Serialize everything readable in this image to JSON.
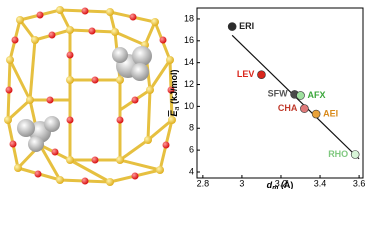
{
  "chart_data": {
    "type": "scatter",
    "x_label": {
      "symbol": "d",
      "subscript": "m",
      "unit": "(Å)"
    },
    "y_label": {
      "symbol": "E",
      "subscript": "a",
      "unit": "(kJ/mol)"
    },
    "xlim": [
      2.77,
      3.62
    ],
    "xticks": [
      2.8,
      3.0,
      3.2,
      3.4,
      3.6
    ],
    "ylim": [
      3.45,
      19
    ],
    "yticks": [
      4,
      6,
      8,
      10,
      12,
      14,
      16,
      18
    ],
    "points": [
      {
        "label": "ERI",
        "x": 2.95,
        "y": 17.3,
        "color": "#2b2b2b",
        "label_color": "#222222"
      },
      {
        "label": "LEV",
        "x": 3.1,
        "y": 12.9,
        "color": "#d9261c",
        "label_color": "#d9261c"
      },
      {
        "label": "SFW",
        "x": 3.27,
        "y": 11.1,
        "color": "#4a4a4a",
        "label_color": "#555555"
      },
      {
        "label": "AFX",
        "x": 3.3,
        "y": 11.0,
        "color": "#9fe09f",
        "label_color": "#3aa63a"
      },
      {
        "label": "CHA",
        "x": 3.32,
        "y": 9.8,
        "color": "#e07a7a",
        "label_color": "#c0392b"
      },
      {
        "label": "AEI",
        "x": 3.38,
        "y": 9.3,
        "color": "#e8a23a",
        "label_color": "#d98a1a"
      },
      {
        "label": "RHO",
        "x": 3.58,
        "y": 5.6,
        "color": "#d8f5d8",
        "label_color": "#7fc87f"
      }
    ],
    "fit_line": {
      "x": [
        2.95,
        3.6
      ],
      "y": [
        16.5,
        5.2
      ],
      "color": "#111111"
    }
  }
}
